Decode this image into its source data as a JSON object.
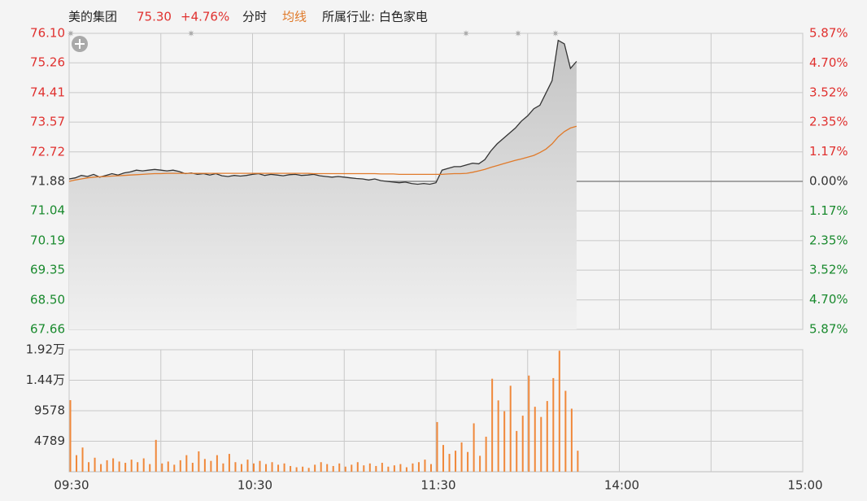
{
  "header": {
    "name": "美的集团",
    "price": "75.30",
    "change": "+4.76%",
    "mode": "分时",
    "industry": "所属行业: 白色家电"
  },
  "chart_data": [
    {
      "type": "line",
      "up_color": "#e0312f",
      "down_color": "#1a8a2e",
      "x": [
        0,
        2,
        4,
        6,
        8,
        10,
        12,
        14,
        16,
        18,
        20,
        22,
        24,
        26,
        28,
        30,
        32,
        34,
        36,
        38,
        40,
        42,
        44,
        46,
        48,
        50,
        52,
        54,
        56,
        58,
        60,
        62,
        64,
        66,
        68,
        70,
        72,
        74,
        76,
        78,
        80,
        82,
        84,
        86,
        88,
        90,
        92,
        94,
        96,
        98,
        100,
        102,
        104,
        106,
        108,
        110,
        112,
        114,
        116,
        118,
        120,
        122,
        124,
        126,
        128,
        130,
        132,
        134,
        136,
        138,
        140,
        142,
        144,
        146,
        148,
        150,
        152,
        154,
        156,
        158,
        160,
        162,
        164,
        166
      ],
      "xlim": [
        0,
        240
      ],
      "xgrid": [
        0,
        30,
        60,
        90,
        120,
        150,
        180,
        210,
        240
      ],
      "ylim": [
        67.66,
        76.1
      ],
      "yticks": [
        {
          "value": 76.1,
          "label": "76.10"
        },
        75.26,
        74.41,
        73.57,
        72.72,
        71.88,
        71.04,
        70.19,
        69.35,
        {
          "value": 68.5,
          "label": "68.50"
        },
        67.66
      ],
      "y2lim": [
        -5.87,
        5.87
      ],
      "y2ticks": [
        {
          "value": 5.87,
          "label": "5.87%"
        },
        {
          "value": 4.7,
          "label": "4.70%"
        },
        {
          "value": 3.52,
          "label": "3.52%"
        },
        {
          "value": 2.35,
          "label": "2.35%"
        },
        {
          "value": 1.17,
          "label": "1.17%"
        },
        {
          "value": 0,
          "label": "0.00%"
        },
        {
          "value": -1.17,
          "label": "1.17%"
        },
        {
          "value": -2.35,
          "label": "2.35%"
        },
        {
          "value": -3.52,
          "label": "3.52%"
        },
        {
          "value": -4.7,
          "label": "4.70%"
        },
        {
          "value": -5.87,
          "label": "5.87%"
        }
      ],
      "series": [
        {
          "color": "#333333",
          "values": [
            71.95,
            71.98,
            72.05,
            72.02,
            72.08,
            72.0,
            72.05,
            72.1,
            72.06,
            72.12,
            72.15,
            72.2,
            72.18,
            72.2,
            72.22,
            72.2,
            72.18,
            72.2,
            72.16,
            72.1,
            72.12,
            72.08,
            72.1,
            72.06,
            72.1,
            72.04,
            72.02,
            72.05,
            72.03,
            72.05,
            72.08,
            72.1,
            72.05,
            72.08,
            72.06,
            72.04,
            72.07,
            72.08,
            72.05,
            72.06,
            72.08,
            72.04,
            72.02,
            72.0,
            72.02,
            72.0,
            71.98,
            71.96,
            71.95,
            71.92,
            71.95,
            71.9,
            71.88,
            71.86,
            71.84,
            71.86,
            71.82,
            71.8,
            71.82,
            71.8,
            71.84,
            72.2,
            72.25,
            72.3,
            72.3,
            72.35,
            72.4,
            72.38,
            72.5,
            72.75,
            72.95,
            73.1,
            73.25,
            73.4,
            73.6,
            73.75,
            73.95,
            74.05,
            74.4,
            74.75,
            75.9,
            75.8,
            75.1,
            75.3
          ]
        },
        {
          "name": "均线",
          "color": "#e07a2a",
          "values": [
            71.88,
            71.92,
            71.95,
            71.98,
            72.0,
            72.01,
            72.02,
            72.03,
            72.04,
            72.05,
            72.06,
            72.07,
            72.08,
            72.09,
            72.1,
            72.1,
            72.11,
            72.11,
            72.11,
            72.11,
            72.11,
            72.11,
            72.11,
            72.11,
            72.11,
            72.11,
            72.11,
            72.11,
            72.11,
            72.11,
            72.11,
            72.11,
            72.11,
            72.11,
            72.11,
            72.11,
            72.11,
            72.11,
            72.11,
            72.11,
            72.1,
            72.1,
            72.1,
            72.1,
            72.1,
            72.1,
            72.1,
            72.1,
            72.1,
            72.1,
            72.1,
            72.09,
            72.09,
            72.09,
            72.08,
            72.08,
            72.08,
            72.08,
            72.08,
            72.08,
            72.08,
            72.08,
            72.09,
            72.1,
            72.1,
            72.11,
            72.14,
            72.18,
            72.22,
            72.28,
            72.33,
            72.38,
            72.43,
            72.48,
            72.52,
            72.57,
            72.62,
            72.7,
            72.8,
            72.95,
            73.15,
            73.3,
            73.4,
            73.45
          ]
        }
      ]
    },
    {
      "type": "bar",
      "color": "#f0883a",
      "x": [
        0,
        2,
        4,
        6,
        8,
        10,
        12,
        14,
        16,
        18,
        20,
        22,
        24,
        26,
        28,
        30,
        32,
        34,
        36,
        38,
        40,
        42,
        44,
        46,
        48,
        50,
        52,
        54,
        56,
        58,
        60,
        62,
        64,
        66,
        68,
        70,
        72,
        74,
        76,
        78,
        80,
        82,
        84,
        86,
        88,
        90,
        92,
        94,
        96,
        98,
        100,
        102,
        104,
        106,
        108,
        110,
        112,
        114,
        116,
        118,
        120,
        122,
        124,
        126,
        128,
        130,
        132,
        134,
        136,
        138,
        140,
        142,
        144,
        146,
        148,
        150,
        152,
        154,
        156,
        158,
        160,
        162,
        164,
        166
      ],
      "xlim": [
        0,
        240
      ],
      "xgrid": [
        0,
        30,
        60,
        90,
        120,
        150,
        180,
        210,
        240
      ],
      "xticks": [
        {
          "value": 0,
          "label": "09:30"
        },
        {
          "value": 60,
          "label": "10:30"
        },
        {
          "value": 120,
          "label": "11:30"
        },
        {
          "value": 180,
          "label": "14:00"
        },
        {
          "value": 240,
          "label": "15:00"
        }
      ],
      "ylim": [
        0,
        19156
      ],
      "yticks": [
        {
          "value": 19156,
          "label": "1.92万"
        },
        {
          "value": 14367,
          "label": "1.44万"
        },
        9578,
        4789
      ],
      "values": [
        11240,
        2600,
        3800,
        1500,
        2200,
        1200,
        1800,
        2100,
        1600,
        1400,
        1900,
        1500,
        2100,
        1200,
        5000,
        1300,
        1600,
        1100,
        1800,
        2600,
        1400,
        3200,
        2000,
        1700,
        2600,
        1300,
        2800,
        1500,
        1200,
        1900,
        1300,
        1700,
        1200,
        1500,
        1100,
        1300,
        900,
        700,
        800,
        600,
        1100,
        1500,
        1200,
        900,
        1300,
        800,
        1100,
        1500,
        1000,
        1300,
        900,
        1400,
        800,
        1000,
        1200,
        700,
        1300,
        1500,
        1900,
        1200,
        7800,
        4200,
        2800,
        3300,
        4600,
        3100,
        7600,
        2500,
        5500,
        14600,
        11200,
        9500,
        13500,
        6400,
        8800,
        15100,
        10200,
        8600,
        11100,
        14700,
        19000,
        12700,
        9900,
        3300
      ]
    }
  ]
}
